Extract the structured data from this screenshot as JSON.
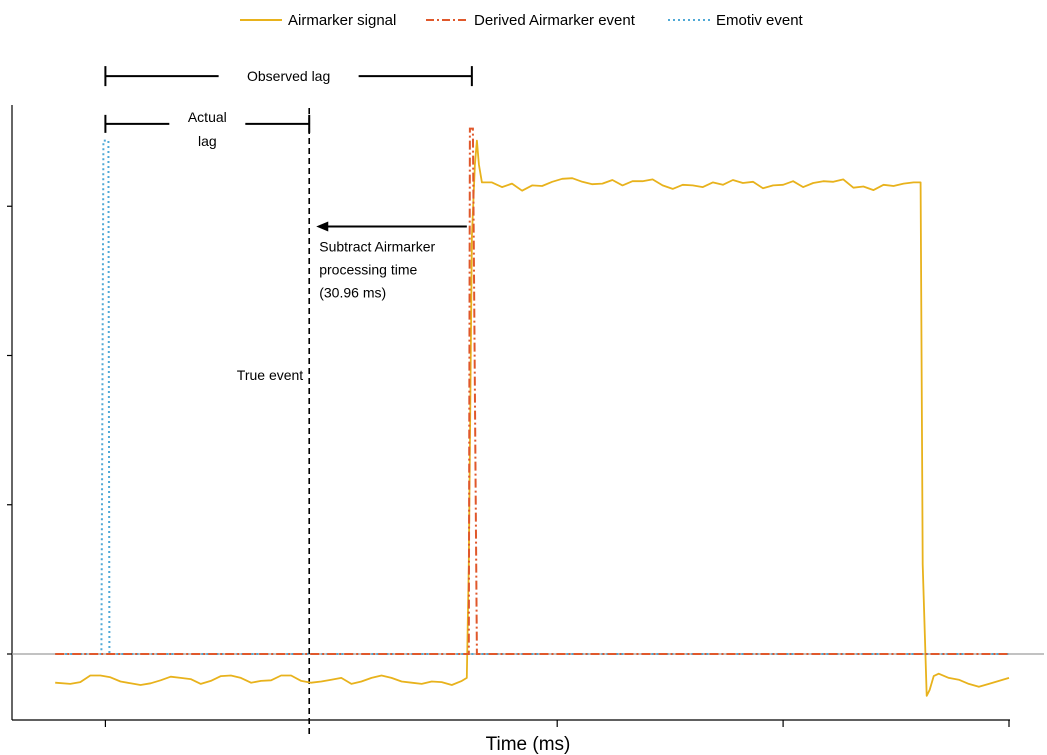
{
  "chart_data": {
    "type": "line",
    "xlabel": "Time (ms)",
    "ylabel": "",
    "xlim": [
      0,
      1000
    ],
    "ylim": [
      -0.18,
      1.08
    ],
    "x_ticks": [
      100,
      550,
      775,
      1000
    ],
    "y_ticks": [
      0,
      0.25,
      0.5,
      0.75
    ],
    "grid": false,
    "legend_position": "top",
    "series": [
      {
        "name": "Airmarker signal",
        "color": "#E8B21C",
        "style": "solid",
        "x": [
          50,
          65,
          75,
          85,
          95,
          105,
          115,
          125,
          135,
          145,
          155,
          165,
          175,
          185,
          195,
          205,
          215,
          225,
          235,
          245,
          255,
          265,
          275,
          285,
          295,
          305,
          315,
          325,
          335,
          345,
          355,
          365,
          375,
          385,
          395,
          405,
          415,
          425,
          435,
          445,
          455,
          460,
          462,
          465,
          468,
          470,
          472,
          475,
          485,
          495,
          505,
          515,
          525,
          535,
          545,
          555,
          565,
          575,
          585,
          595,
          605,
          615,
          625,
          635,
          645,
          655,
          665,
          675,
          685,
          695,
          705,
          715,
          725,
          735,
          745,
          755,
          765,
          775,
          785,
          795,
          805,
          815,
          825,
          835,
          845,
          855,
          865,
          875,
          885,
          895,
          905,
          912,
          914,
          918,
          921,
          925,
          930,
          940,
          950,
          960,
          970,
          980,
          990,
          1000
        ],
        "y": [
          -0.048,
          -0.05,
          -0.047,
          -0.036,
          -0.036,
          -0.039,
          -0.046,
          -0.049,
          -0.052,
          -0.049,
          -0.044,
          -0.038,
          -0.04,
          -0.042,
          -0.05,
          -0.045,
          -0.037,
          -0.036,
          -0.04,
          -0.048,
          -0.045,
          -0.044,
          -0.036,
          -0.036,
          -0.045,
          -0.048,
          -0.046,
          -0.043,
          -0.04,
          -0.05,
          -0.046,
          -0.04,
          -0.036,
          -0.04,
          -0.046,
          -0.048,
          -0.05,
          -0.046,
          -0.047,
          -0.052,
          -0.045,
          -0.04,
          0.15,
          0.7,
          0.82,
          0.86,
          0.82,
          0.79,
          0.79,
          0.782,
          0.788,
          0.776,
          0.785,
          0.784,
          0.791,
          0.796,
          0.797,
          0.791,
          0.787,
          0.788,
          0.794,
          0.785,
          0.792,
          0.792,
          0.795,
          0.785,
          0.779,
          0.786,
          0.785,
          0.782,
          0.79,
          0.786,
          0.794,
          0.789,
          0.791,
          0.78,
          0.785,
          0.786,
          0.792,
          0.782,
          0.789,
          0.792,
          0.791,
          0.795,
          0.781,
          0.783,
          0.777,
          0.786,
          0.784,
          0.788,
          0.79,
          0.79,
          0.15,
          -0.07,
          -0.06,
          -0.037,
          -0.033,
          -0.04,
          -0.043,
          -0.05,
          -0.055,
          -0.05,
          -0.045,
          -0.04
        ]
      },
      {
        "name": "Derived Airmarker event",
        "color": "#E0582B",
        "style": "dashdot",
        "x": [
          50,
          462,
          463,
          466,
          470,
          471,
          1000
        ],
        "y": [
          0,
          0,
          0.88,
          0.88,
          0,
          0,
          0
        ]
      },
      {
        "name": "Emotiv event",
        "color": "#4FA9D6",
        "style": "dotted",
        "x": [
          50,
          96,
          98,
          103,
          104,
          466,
          470,
          1000
        ],
        "y": [
          0,
          0,
          0.86,
          0.86,
          0,
          0,
          0,
          0
        ]
      }
    ],
    "reference_lines": [
      {
        "label": "True event",
        "x": 303,
        "color": "#000000",
        "style": "dashed"
      }
    ],
    "annotations": {
      "observed_lag": {
        "label": "Observed lag",
        "from": 100,
        "to": 465,
        "y": 0.968
      },
      "actual_lag": {
        "label_line1": "Actual",
        "label_line2": "lag",
        "from": 100,
        "to": 303,
        "y": 0.888
      },
      "subtract_arrow": {
        "label_line1": "Subtract Airmarker",
        "label_line2": "processing time",
        "label_line3": "(30.96 ms)",
        "from": 460,
        "to": 310,
        "y": 0.716
      }
    }
  }
}
